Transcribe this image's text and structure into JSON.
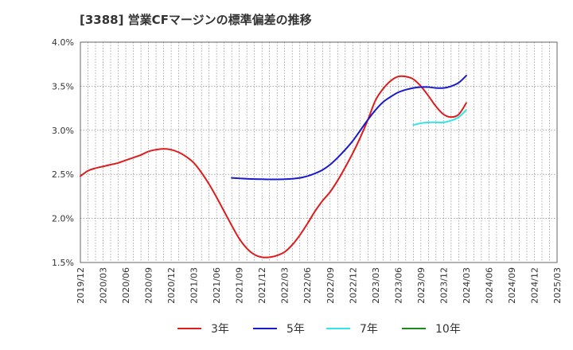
{
  "chart_data": {
    "type": "line",
    "title": "[3388]  営業CFマージンの標準偏差の推移",
    "xlabel": "",
    "ylabel": "",
    "ylim": [
      1.5,
      4.0
    ],
    "yticks": [
      "4.0%",
      "3.5%",
      "3.0%",
      "2.5%",
      "2.0%",
      "1.5%"
    ],
    "ytick_values": [
      4.0,
      3.5,
      3.0,
      2.5,
      2.0,
      1.5
    ],
    "xticks": [
      "2019/12",
      "2020/03",
      "2020/06",
      "2020/09",
      "2020/12",
      "2021/03",
      "2021/06",
      "2021/09",
      "2021/12",
      "2022/03",
      "2022/06",
      "2022/09",
      "2022/12",
      "2023/03",
      "2023/06",
      "2023/09",
      "2023/12",
      "2024/03",
      "2024/06",
      "2024/09",
      "2024/12",
      "2025/03"
    ],
    "grid": true,
    "legend": "bottom",
    "series": [
      {
        "name": "3年",
        "color": "#dd1c1c",
        "points": [
          [
            "2019/12",
            2.48
          ],
          [
            "2020/01",
            2.54
          ],
          [
            "2020/02",
            2.57
          ],
          [
            "2020/03",
            2.59
          ],
          [
            "2020/04",
            2.61
          ],
          [
            "2020/05",
            2.63
          ],
          [
            "2020/06",
            2.66
          ],
          [
            "2020/07",
            2.69
          ],
          [
            "2020/08",
            2.72
          ],
          [
            "2020/09",
            2.76
          ],
          [
            "2020/10",
            2.78
          ],
          [
            "2020/11",
            2.79
          ],
          [
            "2020/12",
            2.78
          ],
          [
            "2021/01",
            2.75
          ],
          [
            "2021/02",
            2.7
          ],
          [
            "2021/03",
            2.63
          ],
          [
            "2021/04",
            2.52
          ],
          [
            "2021/05",
            2.39
          ],
          [
            "2021/06",
            2.24
          ],
          [
            "2021/07",
            2.08
          ],
          [
            "2021/08",
            1.92
          ],
          [
            "2021/09",
            1.77
          ],
          [
            "2021/10",
            1.66
          ],
          [
            "2021/11",
            1.59
          ],
          [
            "2021/12",
            1.56
          ],
          [
            "2022/01",
            1.56
          ],
          [
            "2022/02",
            1.58
          ],
          [
            "2022/03",
            1.62
          ],
          [
            "2022/04",
            1.7
          ],
          [
            "2022/05",
            1.81
          ],
          [
            "2022/06",
            1.94
          ],
          [
            "2022/07",
            2.08
          ],
          [
            "2022/08",
            2.2
          ],
          [
            "2022/09",
            2.3
          ],
          [
            "2022/10",
            2.43
          ],
          [
            "2022/11",
            2.58
          ],
          [
            "2022/12",
            2.74
          ],
          [
            "2023/01",
            2.92
          ],
          [
            "2023/02",
            3.12
          ],
          [
            "2023/03",
            3.34
          ],
          [
            "2023/04",
            3.47
          ],
          [
            "2023/05",
            3.56
          ],
          [
            "2023/06",
            3.61
          ],
          [
            "2023/07",
            3.61
          ],
          [
            "2023/08",
            3.58
          ],
          [
            "2023/09",
            3.5
          ],
          [
            "2023/10",
            3.39
          ],
          [
            "2023/11",
            3.27
          ],
          [
            "2023/12",
            3.18
          ],
          [
            "2024/01",
            3.15
          ],
          [
            "2024/02",
            3.18
          ],
          [
            "2024/03",
            3.31
          ]
        ]
      },
      {
        "name": "5年",
        "color": "#1a1acc",
        "points": [
          [
            "2021/08",
            2.46
          ],
          [
            "2021/09",
            2.455
          ],
          [
            "2021/10",
            2.45
          ],
          [
            "2021/11",
            2.447
          ],
          [
            "2021/12",
            2.445
          ],
          [
            "2022/01",
            2.443
          ],
          [
            "2022/02",
            2.443
          ],
          [
            "2022/03",
            2.445
          ],
          [
            "2022/04",
            2.45
          ],
          [
            "2022/05",
            2.46
          ],
          [
            "2022/06",
            2.48
          ],
          [
            "2022/07",
            2.51
          ],
          [
            "2022/08",
            2.55
          ],
          [
            "2022/09",
            2.61
          ],
          [
            "2022/10",
            2.69
          ],
          [
            "2022/11",
            2.78
          ],
          [
            "2022/12",
            2.88
          ],
          [
            "2023/01",
            3.0
          ],
          [
            "2023/02",
            3.12
          ],
          [
            "2023/03",
            3.23
          ],
          [
            "2023/04",
            3.32
          ],
          [
            "2023/05",
            3.38
          ],
          [
            "2023/06",
            3.43
          ],
          [
            "2023/07",
            3.46
          ],
          [
            "2023/08",
            3.48
          ],
          [
            "2023/09",
            3.49
          ],
          [
            "2023/10",
            3.49
          ],
          [
            "2023/11",
            3.48
          ],
          [
            "2023/12",
            3.48
          ],
          [
            "2024/01",
            3.5
          ],
          [
            "2024/02",
            3.54
          ],
          [
            "2024/03",
            3.62
          ]
        ]
      },
      {
        "name": "7年",
        "color": "#33e6e6",
        "points": [
          [
            "2023/08",
            3.06
          ],
          [
            "2023/09",
            3.08
          ],
          [
            "2023/10",
            3.09
          ],
          [
            "2023/11",
            3.09
          ],
          [
            "2023/12",
            3.09
          ],
          [
            "2024/01",
            3.11
          ],
          [
            "2024/02",
            3.15
          ],
          [
            "2024/03",
            3.23
          ]
        ]
      },
      {
        "name": "10年",
        "color": "#1e8a1e",
        "points": []
      }
    ]
  }
}
